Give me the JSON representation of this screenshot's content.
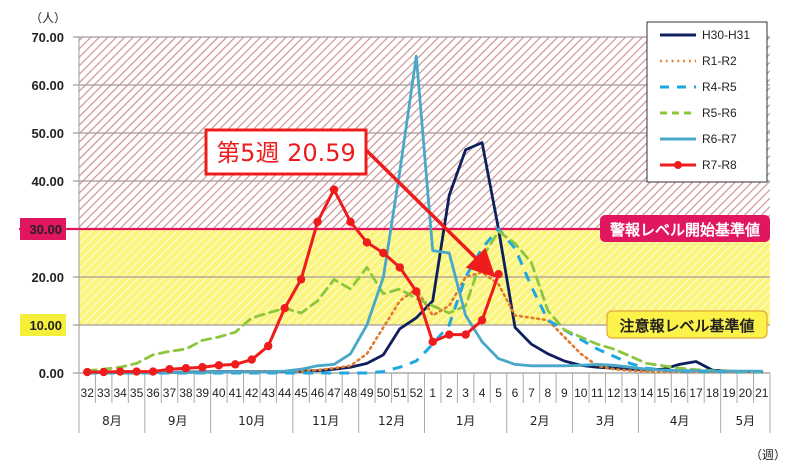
{
  "chart_data": {
    "type": "line",
    "title": "",
    "ylabel": "（人）",
    "xlabel": "（週）",
    "ylim": [
      0,
      70
    ],
    "yticks": [
      "0.00",
      "10.00",
      "20.00",
      "30.00",
      "40.00",
      "50.00",
      "60.00",
      "70.00"
    ],
    "grid": true,
    "legend_position": "top-right",
    "categories": [
      "32",
      "33",
      "34",
      "35",
      "36",
      "37",
      "38",
      "39",
      "40",
      "41",
      "42",
      "43",
      "44",
      "45",
      "46",
      "47",
      "48",
      "49",
      "50",
      "51",
      "52",
      "1",
      "2",
      "3",
      "4",
      "5",
      "6",
      "7",
      "8",
      "9",
      "10",
      "11",
      "12",
      "13",
      "14",
      "15",
      "16",
      "17",
      "18",
      "19",
      "20",
      "21"
    ],
    "months": [
      {
        "label": "8月",
        "start": 0,
        "end": 4
      },
      {
        "label": "9月",
        "start": 4,
        "end": 8
      },
      {
        "label": "10月",
        "start": 8,
        "end": 13
      },
      {
        "label": "11月",
        "start": 13,
        "end": 17
      },
      {
        "label": "12月",
        "start": 17,
        "end": 21
      },
      {
        "label": "1月",
        "start": 21,
        "end": 26
      },
      {
        "label": "2月",
        "start": 26,
        "end": 30
      },
      {
        "label": "3月",
        "start": 30,
        "end": 34
      },
      {
        "label": "4月",
        "start": 34,
        "end": 39
      },
      {
        "label": "5月",
        "start": 39,
        "end": 42
      }
    ],
    "thresholds": [
      {
        "label": "警報レベル開始基準値",
        "value": 30,
        "axis_label": "30.00",
        "color": "#e0175f"
      },
      {
        "label": "注意報レベル基準値",
        "value": 10,
        "axis_label": "10.00",
        "color": "#f5ef3a"
      }
    ],
    "series": [
      {
        "name": "H30-H31",
        "color": "#0d1f5c",
        "style": "solid",
        "values": [
          0.1,
          0.1,
          0.1,
          0.1,
          0.1,
          0.1,
          0.2,
          0.2,
          0.3,
          0.3,
          0.3,
          0.3,
          0.3,
          0.4,
          0.5,
          0.8,
          1.2,
          2.0,
          3.8,
          9.2,
          11.5,
          15.0,
          37.0,
          46.5,
          48.0,
          30.0,
          9.5,
          6.0,
          4.0,
          2.5,
          1.6,
          1.2,
          1.0,
          0.8,
          0.6,
          0.8,
          1.8,
          2.4,
          0.6,
          0.4,
          0.3,
          0.3
        ]
      },
      {
        "name": "R1-R2",
        "color": "#e07b2c",
        "style": "dotted",
        "values": [
          0.1,
          0.1,
          0.1,
          0.1,
          0.1,
          0.1,
          0.1,
          0.1,
          0.1,
          0.2,
          0.3,
          0.3,
          0.3,
          0.4,
          0.6,
          1.0,
          1.5,
          4.0,
          9.5,
          15.0,
          17.5,
          12.0,
          14.0,
          20.0,
          21.0,
          18.5,
          12.0,
          11.5,
          11.0,
          7.5,
          4.0,
          1.5,
          0.8,
          0.5,
          0.3,
          0.2,
          0.2,
          0.2,
          0.2,
          0.2,
          0.2,
          0.2
        ]
      },
      {
        "name": "R4-R5",
        "color": "#1ea7e0",
        "style": "dashed",
        "values": [
          0.0,
          0.0,
          0.0,
          0.0,
          0.0,
          0.0,
          0.0,
          0.0,
          0.0,
          0.0,
          0.0,
          0.0,
          0.0,
          0.0,
          0.0,
          0.0,
          0.0,
          0.0,
          0.3,
          1.2,
          2.5,
          6.0,
          10.0,
          20.0,
          26.0,
          30.0,
          26.0,
          18.0,
          11.0,
          9.0,
          7.0,
          5.0,
          3.5,
          2.0,
          1.0,
          0.6,
          0.4,
          0.3,
          0.3,
          0.2,
          0.2,
          0.2
        ]
      },
      {
        "name": "R5-R6",
        "color": "#8cc63f",
        "style": "dashed",
        "values": [
          0.5,
          0.8,
          1.2,
          2.0,
          3.8,
          4.5,
          5.0,
          6.8,
          7.5,
          8.5,
          11.5,
          12.5,
          13.5,
          12.5,
          15.0,
          19.5,
          17.5,
          22.0,
          16.5,
          17.5,
          15.5,
          14.0,
          12.5,
          14.0,
          24.0,
          29.5,
          27.0,
          23.0,
          13.0,
          9.0,
          7.5,
          6.0,
          5.0,
          3.5,
          2.0,
          1.5,
          1.0,
          0.7,
          0.5,
          0.4,
          0.3,
          0.3
        ]
      },
      {
        "name": "R6-R7",
        "color": "#49a8c9",
        "style": "solid",
        "values": [
          0.1,
          0.1,
          0.1,
          0.1,
          0.1,
          0.1,
          0.1,
          0.1,
          0.2,
          0.2,
          0.2,
          0.2,
          0.4,
          0.8,
          1.5,
          1.8,
          4.0,
          10.0,
          20.0,
          42.0,
          66.0,
          25.5,
          25.0,
          12.0,
          6.5,
          3.0,
          1.8,
          1.5,
          1.5,
          1.5,
          1.6,
          1.8,
          1.6,
          1.2,
          0.8,
          0.6,
          0.5,
          0.5,
          0.4,
          0.4,
          0.4,
          0.4
        ]
      },
      {
        "name": "R7-R8",
        "color": "#ee1c1c",
        "style": "solid-marker",
        "values": [
          0.2,
          0.2,
          0.3,
          0.3,
          0.3,
          0.8,
          1.0,
          1.2,
          1.6,
          1.8,
          2.8,
          5.6,
          13.5,
          19.5,
          31.5,
          38.2,
          31.5,
          27.2,
          25.0,
          22.0,
          17.0,
          6.5,
          8.0,
          8.0,
          11.0,
          20.59
        ]
      }
    ],
    "annotation": {
      "text": "第5週 20.59",
      "week": "5",
      "value": 20.59,
      "color": "#ee1c1c"
    }
  }
}
